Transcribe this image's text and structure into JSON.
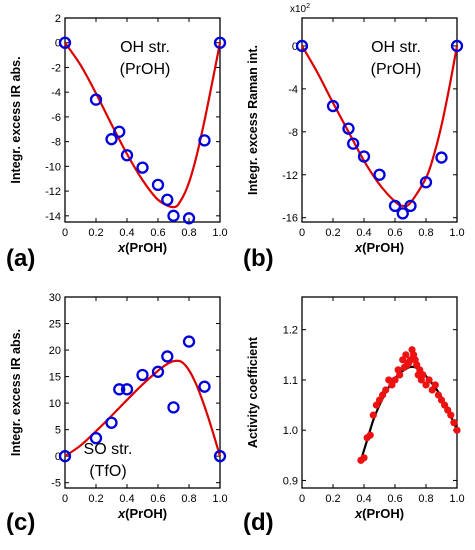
{
  "chart_data": [
    {
      "panel": "(a)",
      "type": "scatter",
      "ylabel": "Integr. excess IR abs.",
      "xlabel": "x(PrOH)",
      "annotation": [
        "OH str.",
        "(PrOH)"
      ],
      "xlim": [
        0,
        1.0
      ],
      "ylim": [
        -14.5,
        2
      ],
      "xticks": [
        0,
        0.2,
        0.4,
        0.6,
        0.8,
        1.0
      ],
      "xtick_labels": [
        "0",
        "0.2",
        "0.4",
        "0.6",
        "0.8",
        "1.0"
      ],
      "yticks": [
        2,
        0,
        -2,
        -4,
        -6,
        -8,
        -10,
        -12,
        -14
      ],
      "ytick_labels": [
        "2",
        "0",
        "-2",
        "-4",
        "-6",
        "-8",
        "-10",
        "-12",
        "-14"
      ],
      "points": {
        "x": [
          0,
          0.2,
          0.3,
          0.35,
          0.4,
          0.5,
          0.6,
          0.66,
          0.7,
          0.8,
          0.9,
          1.0
        ],
        "y": [
          0,
          -4.6,
          -7.8,
          -7.2,
          -9.1,
          -10.1,
          -11.5,
          -12.7,
          -14.0,
          -14.2,
          -7.9,
          0
        ]
      },
      "fit": {
        "x": [
          0,
          0.1,
          0.2,
          0.3,
          0.4,
          0.5,
          0.6,
          0.7,
          0.75,
          0.8,
          0.85,
          0.9,
          0.95,
          1.0
        ],
        "y": [
          0,
          -1.8,
          -4.1,
          -6.6,
          -9.0,
          -11.1,
          -12.7,
          -13.3,
          -12.7,
          -11.3,
          -9.1,
          -6.3,
          -3.2,
          0
        ]
      },
      "marker_color": "#0000dd",
      "line_color": "#dd0000"
    },
    {
      "panel": "(b)",
      "type": "scatter",
      "ylabel": "Integr. excess Raman int.",
      "xlabel": "x(PrOH)",
      "annotation": [
        "OH str.",
        "(PrOH)"
      ],
      "y_multiplier": "x10²",
      "xlim": [
        0,
        1.0
      ],
      "ylim": [
        -16.4,
        2.6
      ],
      "xticks": [
        0,
        0.2,
        0.4,
        0.6,
        0.8,
        1.0
      ],
      "xtick_labels": [
        "0",
        "0.2",
        "0.4",
        "0.6",
        "0.8",
        "1.0"
      ],
      "yticks": [
        0,
        -4,
        -8,
        -12,
        -16
      ],
      "ytick_labels": [
        "0",
        "-4",
        "-8",
        "-12",
        "-16"
      ],
      "points": {
        "x": [
          0,
          0.2,
          0.3,
          0.33,
          0.4,
          0.5,
          0.6,
          0.65,
          0.7,
          0.8,
          0.9,
          1.0
        ],
        "y": [
          0,
          -5.6,
          -7.7,
          -9.1,
          -10.3,
          -12.0,
          -14.9,
          -15.6,
          -14.9,
          -12.7,
          -10.4,
          0
        ]
      },
      "fit": {
        "x": [
          0,
          0.1,
          0.2,
          0.3,
          0.4,
          0.5,
          0.6,
          0.65,
          0.7,
          0.8,
          0.85,
          0.9,
          0.95,
          1.0
        ],
        "y": [
          0,
          -2.5,
          -5.3,
          -8.0,
          -10.7,
          -12.9,
          -14.5,
          -14.9,
          -14.6,
          -12.3,
          -10.2,
          -7.4,
          -3.9,
          0
        ]
      },
      "marker_color": "#0000dd",
      "line_color": "#dd0000"
    },
    {
      "panel": "(c)",
      "type": "scatter",
      "ylabel": "Integr. excess IR abs.",
      "xlabel": "x(PrOH)",
      "annotation": [
        "SO str.",
        "(TfO)"
      ],
      "xlim": [
        0,
        1.0
      ],
      "ylim": [
        -6,
        30
      ],
      "xticks": [
        0,
        0.2,
        0.4,
        0.6,
        0.8,
        1.0
      ],
      "xtick_labels": [
        "0",
        "0.2",
        "0.4",
        "0.6",
        "0.8",
        "1.0"
      ],
      "yticks": [
        30,
        25,
        20,
        15,
        10,
        5,
        0,
        -5
      ],
      "ytick_labels": [
        "30",
        "25",
        "20",
        "15",
        "10",
        "5",
        "0",
        "-5"
      ],
      "points": {
        "x": [
          0,
          0.2,
          0.3,
          0.35,
          0.4,
          0.5,
          0.6,
          0.66,
          0.7,
          0.8,
          0.9,
          1.0
        ],
        "y": [
          0,
          3.4,
          6.3,
          12.6,
          12.6,
          15.3,
          15.9,
          18.8,
          9.2,
          21.6,
          13.1,
          0
        ]
      },
      "fit": {
        "x": [
          0,
          0.1,
          0.2,
          0.3,
          0.4,
          0.5,
          0.6,
          0.65,
          0.7,
          0.75,
          0.8,
          0.85,
          0.9,
          0.95,
          1.0
        ],
        "y": [
          0,
          2.0,
          4.7,
          7.6,
          10.6,
          13.5,
          16.1,
          17.2,
          17.9,
          17.8,
          16.2,
          13.3,
          9.4,
          4.9,
          0
        ]
      },
      "marker_color": "#0000dd",
      "line_color": "#dd0000"
    },
    {
      "panel": "(d)",
      "type": "scatter",
      "ylabel": "Activity coefficient",
      "xlabel": "x(PrOH)",
      "xlim": [
        0,
        1.0
      ],
      "ylim": [
        0.885,
        1.265
      ],
      "xticks": [
        0,
        0.2,
        0.4,
        0.6,
        0.8,
        1.0
      ],
      "xtick_labels": [
        "0",
        "0.2",
        "0.4",
        "0.6",
        "0.8",
        "1.0"
      ],
      "yticks": [
        0.9,
        1.0,
        1.1,
        1.2
      ],
      "ytick_labels": [
        "0.9",
        "1.0",
        "1.1",
        "1.2"
      ],
      "points": {
        "x": [
          0.38,
          0.4,
          0.42,
          0.44,
          0.46,
          0.48,
          0.5,
          0.52,
          0.54,
          0.56,
          0.58,
          0.6,
          0.62,
          0.63,
          0.65,
          0.66,
          0.67,
          0.68,
          0.69,
          0.7,
          0.71,
          0.72,
          0.73,
          0.74,
          0.75,
          0.76,
          0.77,
          0.78,
          0.8,
          0.82,
          0.84,
          0.86,
          0.88,
          0.9,
          0.92,
          0.94,
          0.96,
          0.98,
          1.0
        ],
        "y": [
          0.94,
          0.945,
          0.985,
          0.99,
          1.03,
          1.05,
          1.06,
          1.07,
          1.08,
          1.1,
          1.09,
          1.1,
          1.12,
          1.11,
          1.14,
          1.125,
          1.15,
          1.13,
          1.135,
          1.14,
          1.16,
          1.15,
          1.14,
          1.13,
          1.11,
          1.12,
          1.1,
          1.11,
          1.09,
          1.1,
          1.08,
          1.09,
          1.07,
          1.06,
          1.05,
          1.04,
          1.03,
          1.015,
          1.0
        ]
      },
      "fit": {
        "x": [
          0.38,
          0.42,
          0.46,
          0.5,
          0.54,
          0.58,
          0.62,
          0.66,
          0.7,
          0.74,
          0.78,
          0.82,
          0.86,
          0.9,
          0.94,
          0.98,
          1.0
        ],
        "y": [
          0.94,
          0.98,
          1.02,
          1.05,
          1.075,
          1.095,
          1.11,
          1.12,
          1.126,
          1.124,
          1.115,
          1.1,
          1.085,
          1.065,
          1.04,
          1.015,
          1.0
        ]
      },
      "marker_color": "#ee1111",
      "line_color": "#000000"
    }
  ]
}
